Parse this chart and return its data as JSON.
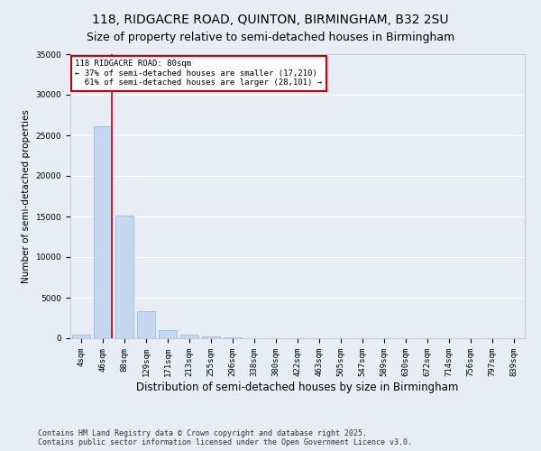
{
  "title": "118, RIDGACRE ROAD, QUINTON, BIRMINGHAM, B32 2SU",
  "subtitle": "Size of property relative to semi-detached houses in Birmingham",
  "xlabel": "Distribution of semi-detached houses by size in Birmingham",
  "ylabel": "Number of semi-detached properties",
  "footer_line1": "Contains HM Land Registry data © Crown copyright and database right 2025.",
  "footer_line2": "Contains public sector information licensed under the Open Government Licence v3.0.",
  "categories": [
    "4sqm",
    "46sqm",
    "88sqm",
    "129sqm",
    "171sqm",
    "213sqm",
    "255sqm",
    "296sqm",
    "338sqm",
    "380sqm",
    "422sqm",
    "463sqm",
    "505sqm",
    "547sqm",
    "589sqm",
    "630sqm",
    "672sqm",
    "714sqm",
    "756sqm",
    "797sqm",
    "839sqm"
  ],
  "values": [
    400,
    26100,
    15100,
    3300,
    1050,
    480,
    180,
    60,
    20,
    10,
    5,
    3,
    2,
    1,
    1,
    0,
    0,
    0,
    0,
    0,
    0
  ],
  "bar_color": "#c5d8f0",
  "bar_edge_color": "#92b4d4",
  "property_label": "118 RIDGACRE ROAD: 80sqm",
  "pct_smaller": 37,
  "pct_larger": 61,
  "count_smaller": 17210,
  "count_larger": 28101,
  "annotation_box_color": "#ffffff",
  "annotation_box_edge": "#cc0000",
  "vline_color": "#cc0000",
  "ylim": [
    0,
    35000
  ],
  "yticks": [
    0,
    5000,
    10000,
    15000,
    20000,
    25000,
    30000,
    35000
  ],
  "bg_color": "#e8ecf5",
  "axes_bg_color": "#e8ecf5",
  "grid_color": "#ffffff",
  "title_fontsize": 10,
  "xlabel_fontsize": 8.5,
  "ylabel_fontsize": 7.5,
  "tick_fontsize": 6.5,
  "ann_fontsize": 6.5,
  "footer_fontsize": 6.0,
  "vline_x_index": 1,
  "bar_width": 0.85
}
